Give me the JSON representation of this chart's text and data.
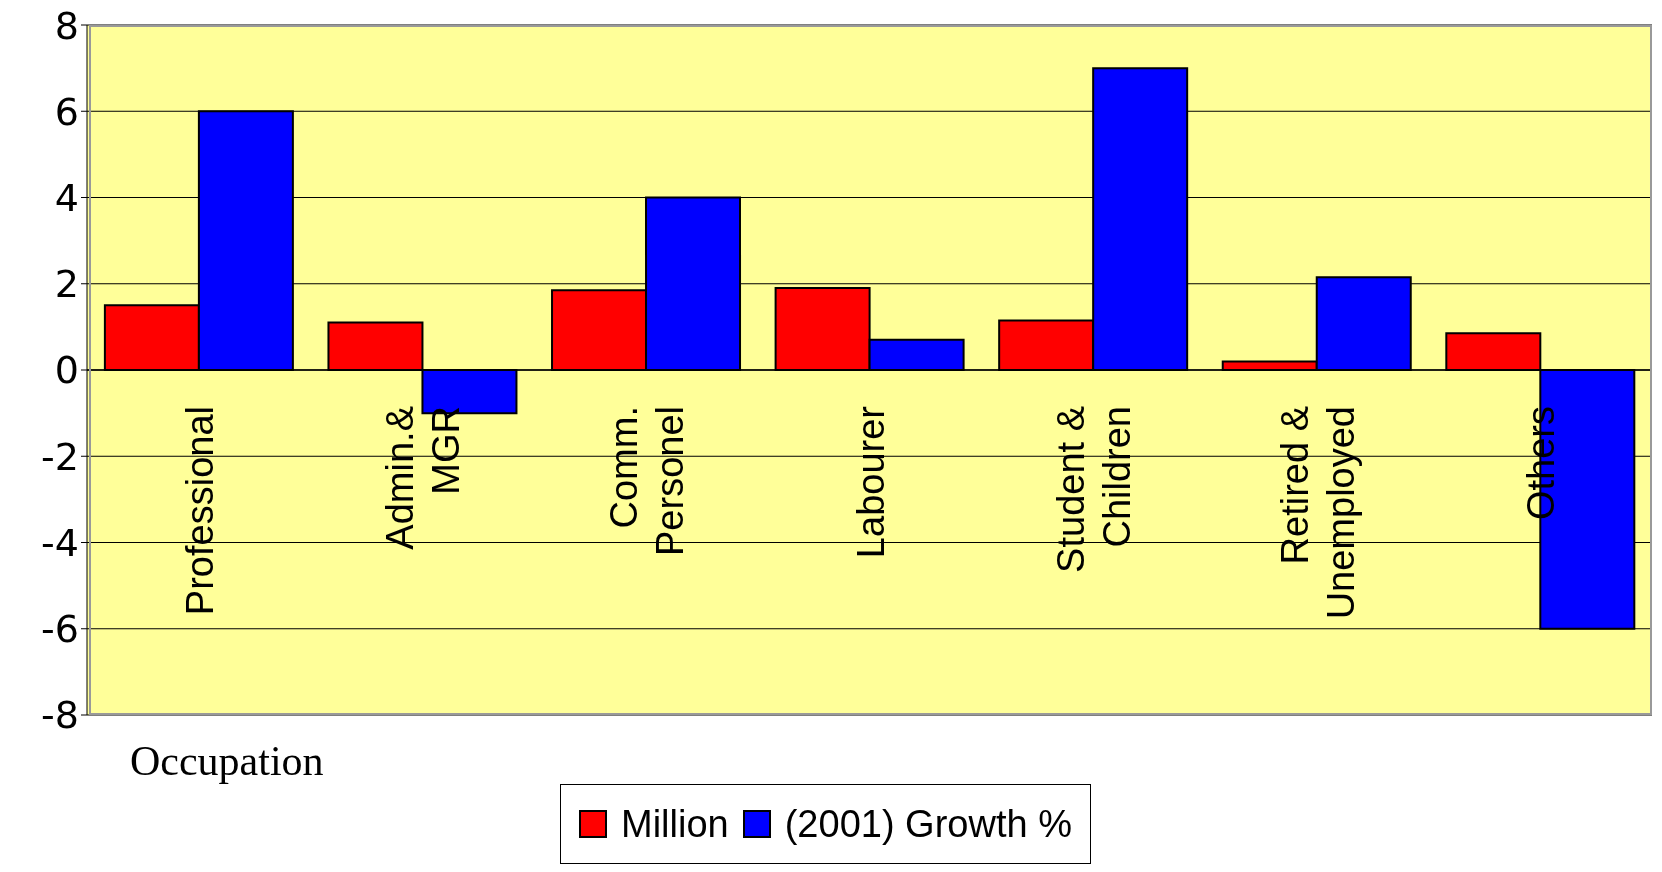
{
  "chart_data": {
    "type": "bar",
    "categories": [
      "Professional",
      "Admin.&\nMGR",
      "Comm.\nPersonel",
      "Labourer",
      "Student &\nChildren",
      "Retired &\nUnemployed",
      "Others"
    ],
    "series": [
      {
        "name": "Million",
        "color": "#ff0000",
        "values": [
          1.5,
          1.1,
          1.85,
          1.9,
          1.15,
          0.2,
          0.85
        ]
      },
      {
        "name": "(2001) Growth %",
        "color": "#0000ff",
        "values": [
          6,
          -1,
          4,
          0.7,
          7,
          2.15,
          -6
        ]
      }
    ],
    "xlabel": "Occupation",
    "ylim": [
      -8,
      8
    ],
    "yticks": [
      -8,
      -6,
      -4,
      -2,
      0,
      2,
      4,
      6,
      8
    ],
    "grid": "y",
    "legend": "bottom"
  }
}
